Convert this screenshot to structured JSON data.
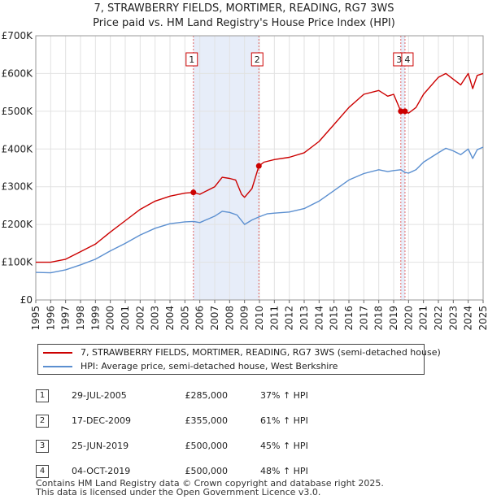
{
  "title_line1": "7, STRAWBERRY FIELDS, MORTIMER, READING, RG7 3WS",
  "title_line2": "Price paid vs. HM Land Registry's House Price Index (HPI)",
  "chart_data": {
    "type": "line",
    "ylim": [
      0,
      700000
    ],
    "xlim": [
      1995,
      2025
    ],
    "y_ticks": [
      {
        "value": 0,
        "label": "£0"
      },
      {
        "value": 100000,
        "label": "£100K"
      },
      {
        "value": 200000,
        "label": "£200K"
      },
      {
        "value": 300000,
        "label": "£300K"
      },
      {
        "value": 400000,
        "label": "£400K"
      },
      {
        "value": 500000,
        "label": "£500K"
      },
      {
        "value": 600000,
        "label": "£600K"
      },
      {
        "value": 700000,
        "label": "£700K"
      }
    ],
    "x_ticks": [
      "1995",
      "1996",
      "1997",
      "1998",
      "1999",
      "2000",
      "2001",
      "2002",
      "2003",
      "2004",
      "2005",
      "2006",
      "2007",
      "2008",
      "2009",
      "2010",
      "2011",
      "2012",
      "2013",
      "2014",
      "2015",
      "2016",
      "2017",
      "2018",
      "2019",
      "2020",
      "2021",
      "2022",
      "2023",
      "2024",
      "2025"
    ],
    "grid": true,
    "shaded_periods": [
      {
        "from": 2005.57,
        "to": 2009.96
      },
      {
        "from": 2019.48,
        "to": 2019.76
      }
    ],
    "series": [
      {
        "name": "7, STRAWBERRY FIELDS, MORTIMER, READING, RG7 3WS (semi-detached house)",
        "color": "#cc0000",
        "points": [
          [
            1995,
            100000
          ],
          [
            1996,
            100000
          ],
          [
            1997,
            108000
          ],
          [
            1998,
            128000
          ],
          [
            1999,
            148000
          ],
          [
            2000,
            180000
          ],
          [
            2001,
            210000
          ],
          [
            2002,
            240000
          ],
          [
            2003,
            262000
          ],
          [
            2004,
            275000
          ],
          [
            2005,
            283000
          ],
          [
            2005.57,
            285000
          ],
          [
            2006,
            280000
          ],
          [
            2007,
            300000
          ],
          [
            2007.5,
            325000
          ],
          [
            2008,
            322000
          ],
          [
            2008.4,
            318000
          ],
          [
            2008.8,
            280000
          ],
          [
            2009,
            272000
          ],
          [
            2009.5,
            295000
          ],
          [
            2009.96,
            355000
          ],
          [
            2010.3,
            365000
          ],
          [
            2011,
            372000
          ],
          [
            2012,
            378000
          ],
          [
            2013,
            390000
          ],
          [
            2014,
            420000
          ],
          [
            2015,
            465000
          ],
          [
            2016,
            510000
          ],
          [
            2017,
            545000
          ],
          [
            2018,
            555000
          ],
          [
            2018.6,
            540000
          ],
          [
            2019,
            545000
          ],
          [
            2019.48,
            500000
          ],
          [
            2019.76,
            500000
          ],
          [
            2020,
            495000
          ],
          [
            2020.5,
            510000
          ],
          [
            2021,
            545000
          ],
          [
            2022,
            590000
          ],
          [
            2022.5,
            600000
          ],
          [
            2023,
            585000
          ],
          [
            2023.5,
            570000
          ],
          [
            2024,
            600000
          ],
          [
            2024.3,
            560000
          ],
          [
            2024.6,
            595000
          ],
          [
            2025,
            600000
          ]
        ]
      },
      {
        "name": "HPI: Average price, semi-detached house, West Berkshire",
        "color": "#5b8fd0",
        "points": [
          [
            1995,
            73000
          ],
          [
            1996,
            72000
          ],
          [
            1997,
            80000
          ],
          [
            1998,
            93000
          ],
          [
            1999,
            108000
          ],
          [
            2000,
            130000
          ],
          [
            2001,
            150000
          ],
          [
            2002,
            172000
          ],
          [
            2003,
            190000
          ],
          [
            2004,
            202000
          ],
          [
            2005,
            207000
          ],
          [
            2005.57,
            208000
          ],
          [
            2006,
            205000
          ],
          [
            2007,
            222000
          ],
          [
            2007.5,
            235000
          ],
          [
            2008,
            232000
          ],
          [
            2008.5,
            225000
          ],
          [
            2009,
            200000
          ],
          [
            2009.5,
            212000
          ],
          [
            2009.96,
            220000
          ],
          [
            2010.5,
            228000
          ],
          [
            2011,
            230000
          ],
          [
            2012,
            233000
          ],
          [
            2013,
            242000
          ],
          [
            2014,
            262000
          ],
          [
            2015,
            290000
          ],
          [
            2016,
            318000
          ],
          [
            2017,
            335000
          ],
          [
            2018,
            345000
          ],
          [
            2018.6,
            340000
          ],
          [
            2019,
            343000
          ],
          [
            2019.48,
            345000
          ],
          [
            2019.76,
            338000
          ],
          [
            2020,
            336000
          ],
          [
            2020.5,
            345000
          ],
          [
            2021,
            365000
          ],
          [
            2022,
            390000
          ],
          [
            2022.5,
            402000
          ],
          [
            2023,
            395000
          ],
          [
            2023.5,
            385000
          ],
          [
            2024,
            400000
          ],
          [
            2024.3,
            375000
          ],
          [
            2024.6,
            398000
          ],
          [
            2025,
            405000
          ]
        ]
      }
    ],
    "annotations": [
      {
        "label": "1",
        "x": 2005.57,
        "y": 285000
      },
      {
        "label": "2",
        "x": 2009.96,
        "y": 355000
      },
      {
        "label": "3",
        "x": 2019.48,
        "y": 500000
      },
      {
        "label": "4",
        "x": 2019.76,
        "y": 500000
      }
    ]
  },
  "legend": {
    "items": [
      {
        "label": "7, STRAWBERRY FIELDS, MORTIMER, READING, RG7 3WS (semi-detached house)",
        "color": "#cc0000"
      },
      {
        "label": "HPI: Average price, semi-detached house, West Berkshire",
        "color": "#5b8fd0"
      }
    ]
  },
  "sales": [
    {
      "num": "1",
      "date": "29-JUL-2005",
      "price": "£285,000",
      "hpi": "37% ↑ HPI"
    },
    {
      "num": "2",
      "date": "17-DEC-2009",
      "price": "£355,000",
      "hpi": "61% ↑ HPI"
    },
    {
      "num": "3",
      "date": "25-JUN-2019",
      "price": "£500,000",
      "hpi": "45% ↑ HPI"
    },
    {
      "num": "4",
      "date": "04-OCT-2019",
      "price": "£500,000",
      "hpi": "48% ↑ HPI"
    }
  ],
  "footer_line1": "Contains HM Land Registry data © Crown copyright and database right 2025.",
  "footer_line2": "This data is licensed under the Open Government Licence v3.0."
}
